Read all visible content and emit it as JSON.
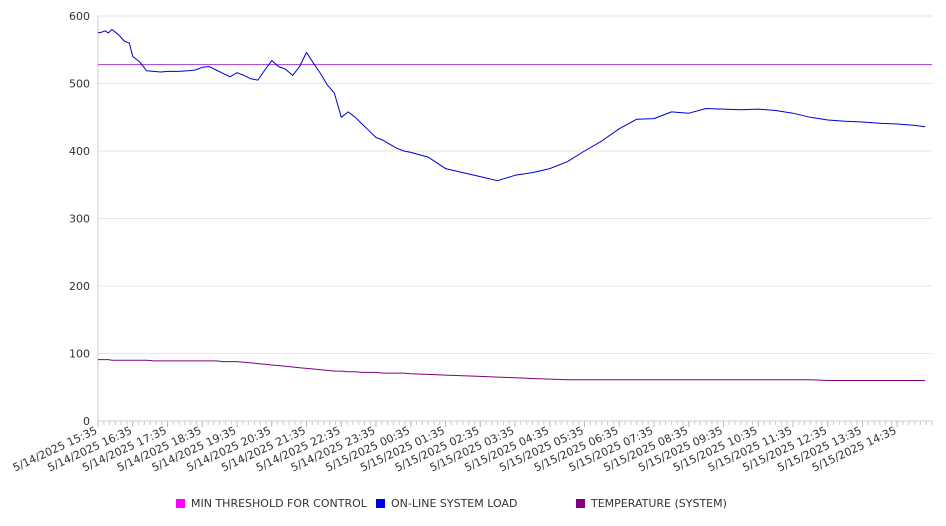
{
  "chart_data": {
    "type": "line",
    "ylim": [
      0,
      600
    ],
    "yticks": [
      0,
      100,
      200,
      300,
      400,
      500,
      600
    ],
    "grid": true,
    "legend_position": "bottom",
    "x_labels": [
      "5/14/2025 15:35",
      "5/14/2025 16:35",
      "5/14/2025 17:35",
      "5/14/2025 18:35",
      "5/14/2025 19:35",
      "5/14/2025 20:35",
      "5/14/2025 21:35",
      "5/14/2025 22:35",
      "5/14/2025 23:35",
      "5/15/2025 00:35",
      "5/15/2025 01:35",
      "5/15/2025 02:35",
      "5/15/2025 03:35",
      "5/15/2025 04:35",
      "5/15/2025 05:35",
      "5/15/2025 06:35",
      "5/15/2025 07:35",
      "5/15/2025 08:35",
      "5/15/2025 09:35",
      "5/15/2025 10:35",
      "5/15/2025 11:35",
      "5/15/2025 12:35",
      "5/15/2025 13:35",
      "5/15/2025 14:35"
    ],
    "x_hours": [
      0,
      0.1,
      0.2,
      0.3,
      0.4,
      0.5,
      0.6,
      0.75,
      0.9,
      1.0,
      1.2,
      1.4,
      1.6,
      1.8,
      2.0,
      2.3,
      2.6,
      2.8,
      3.0,
      3.2,
      3.4,
      3.6,
      3.8,
      4.0,
      4.2,
      4.4,
      4.6,
      4.8,
      5.0,
      5.2,
      5.4,
      5.6,
      5.8,
      6.0,
      6.2,
      6.4,
      6.6,
      6.8,
      7.0,
      7.2,
      7.4,
      7.6,
      7.8,
      8.0,
      8.2,
      8.4,
      8.6,
      8.8,
      9.0,
      9.5,
      10.0,
      10.5,
      11.0,
      11.5,
      12.0,
      12.5,
      13.0,
      13.5,
      14.0,
      14.5,
      15.0,
      15.5,
      16.0,
      16.5,
      17.0,
      17.5,
      18.0,
      18.5,
      19.0,
      19.5,
      20.0,
      20.5,
      21.0,
      21.5,
      22.0,
      22.5,
      23.0,
      23.5,
      23.8
    ],
    "series": [
      {
        "name": "MIN THRESHOLD FOR CONTROL",
        "color": "#a03ecf",
        "legend_color": "#ff00ff",
        "values": [
          528,
          528
        ]
      },
      {
        "name": "ON-LINE SYSTEM LOAD",
        "color": "#0000cc",
        "legend_color": "#0000dd",
        "values": [
          575,
          576,
          578,
          575,
          580,
          576,
          572,
          563,
          560,
          540,
          532,
          519,
          518,
          517,
          518,
          518,
          519,
          520,
          524,
          525,
          520,
          515,
          510,
          516,
          512,
          507,
          505,
          520,
          534,
          525,
          521,
          512,
          525,
          546,
          530,
          515,
          498,
          486,
          450,
          458,
          450,
          440,
          430,
          420,
          416,
          410,
          404,
          400,
          398,
          391,
          374,
          368,
          362,
          356,
          364,
          368,
          374,
          384,
          400,
          415,
          433,
          447,
          448,
          458,
          456,
          463,
          462,
          461,
          462,
          460,
          456,
          450,
          446,
          444,
          443,
          441,
          440,
          438,
          436
        ]
      },
      {
        "name": "TEMPERATURE (SYSTEM)",
        "color": "#800080",
        "legend_color": "#800080",
        "values": [
          91,
          91,
          91,
          91,
          90,
          90,
          90,
          90,
          90,
          90,
          90,
          90,
          89,
          89,
          89,
          89,
          89,
          89,
          89,
          89,
          89,
          88,
          88,
          88,
          87,
          86,
          85,
          84,
          83,
          82,
          81,
          80,
          79,
          78,
          77,
          76,
          75,
          74,
          74,
          73,
          73,
          72,
          72,
          72,
          71,
          71,
          71,
          71,
          70,
          69,
          68,
          67,
          66,
          65,
          64,
          63,
          62,
          61,
          61,
          61,
          61,
          61,
          61,
          61,
          61,
          61,
          61,
          61,
          61,
          61,
          61,
          61,
          60,
          60,
          60,
          60,
          60,
          60,
          60
        ]
      }
    ]
  }
}
